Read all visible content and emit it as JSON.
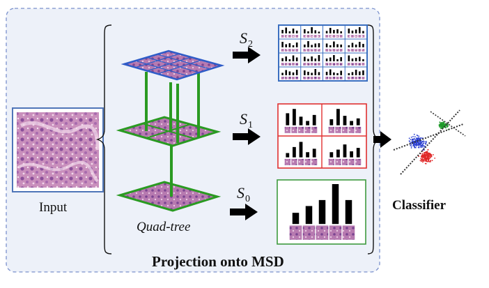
{
  "labels": {
    "input": "Input",
    "quadtree": "Quad-tree",
    "projection": "Projection onto MSD",
    "classifier": "Classifier"
  },
  "scales": [
    {
      "letter": "S",
      "index": "2"
    },
    {
      "letter": "S",
      "index": "1"
    },
    {
      "letter": "S",
      "index": "0"
    }
  ],
  "histograms": {
    "level0": [
      0.28,
      0.45,
      0.6,
      1.0,
      0.6
    ],
    "level1": [
      [
        0.7,
        0.95,
        0.5,
        0.25,
        0.6
      ],
      [
        0.35,
        0.95,
        0.55,
        0.25,
        0.4
      ],
      [
        0.25,
        0.6,
        0.9,
        0.3,
        0.5
      ],
      [
        0.3,
        0.45,
        0.75,
        0.35,
        0.55
      ]
    ],
    "level2": [
      [
        0.5,
        0.85,
        0.3,
        0.7,
        0.4
      ],
      [
        0.6,
        0.3,
        0.9,
        0.45,
        0.25
      ],
      [
        0.35,
        0.8,
        0.5,
        0.6,
        0.3
      ],
      [
        0.7,
        0.4,
        0.55,
        0.9,
        0.35
      ],
      [
        0.8,
        0.45,
        0.6,
        0.3,
        0.7
      ],
      [
        0.4,
        0.9,
        0.35,
        0.55,
        0.6
      ],
      [
        0.55,
        0.3,
        0.85,
        0.45,
        0.4
      ],
      [
        0.3,
        0.65,
        0.4,
        0.8,
        0.5
      ],
      [
        0.45,
        0.7,
        0.3,
        0.85,
        0.55
      ],
      [
        0.65,
        0.35,
        0.7,
        0.4,
        0.9
      ],
      [
        0.4,
        0.55,
        0.9,
        0.3,
        0.6
      ],
      [
        0.85,
        0.4,
        0.5,
        0.65,
        0.3
      ],
      [
        0.35,
        0.75,
        0.55,
        0.4,
        0.8
      ],
      [
        0.7,
        0.5,
        0.35,
        0.9,
        0.45
      ],
      [
        0.5,
        0.85,
        0.4,
        0.3,
        0.65
      ],
      [
        0.3,
        0.45,
        0.8,
        0.55,
        0.7
      ]
    ]
  },
  "colors": {
    "panel_bg": "#edf1f9",
    "panel_border": "#7a90cc",
    "input_border": "#4f75b8",
    "s2_border": "#3b6fc0",
    "s1_border": "#e03030",
    "s0_border": "#3e9a3e",
    "tree_green": "#2a9a22",
    "tree_blue": "#2f5cc8",
    "tissue": "#c67fb0",
    "bar": "#000000"
  },
  "icons": [
    "right-arrow-icon",
    "left-brace-icon",
    "right-brace-icon"
  ]
}
